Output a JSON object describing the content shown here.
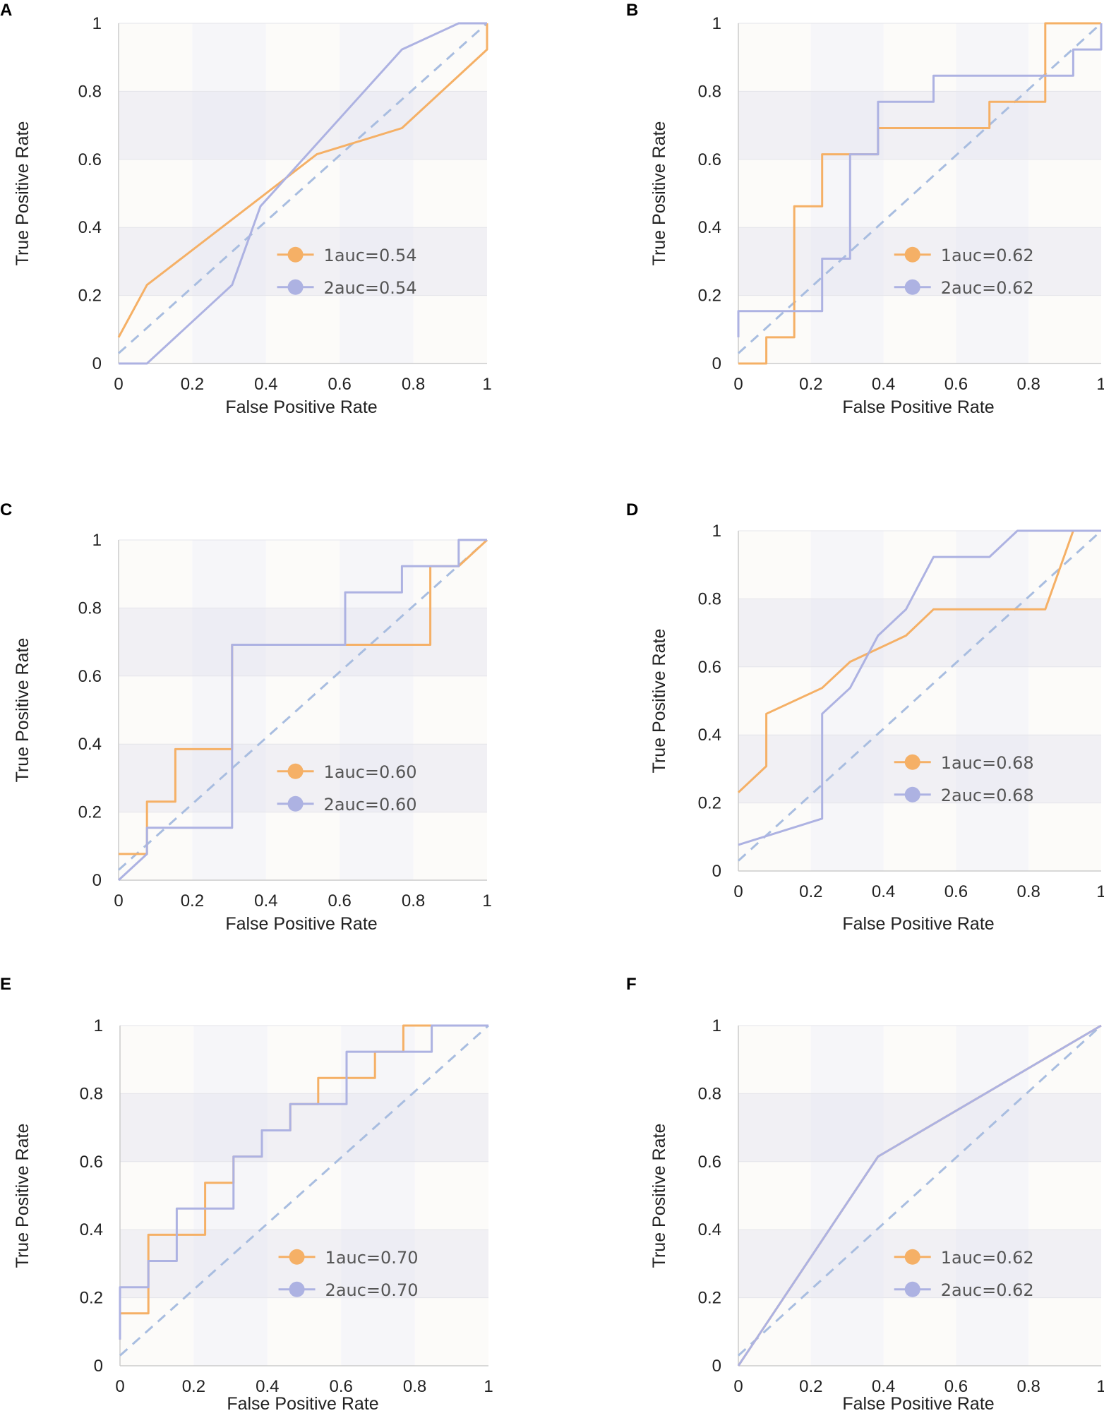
{
  "figure": {
    "background_band_light": "#fcfbf9",
    "background_band_dark": "#f6f6f9",
    "grid_color": "#e4e4ea",
    "axis_color": "#cccccc"
  },
  "chart_data": [
    {
      "panel": "A",
      "type": "line",
      "xlabel": "False Positive Rate",
      "ylabel": "True Positive Rate",
      "xlim": [
        0,
        1
      ],
      "ylim": [
        0,
        1
      ],
      "xticks": [
        "0",
        "0.2",
        "0.4",
        "0.6",
        "0.8",
        "1"
      ],
      "yticks": [
        "0",
        "0.2",
        "0.4",
        "0.6",
        "0.8",
        "1"
      ],
      "reference_line": {
        "x": [
          0,
          1
        ],
        "y": [
          0.03,
          1
        ],
        "color": "#a8bde0",
        "dashed": true
      },
      "series": [
        {
          "name": "1auc=0.54",
          "color": "#f5b066",
          "x": [
            0,
            0,
            0.077,
            0.538,
            0.769,
            1,
            1
          ],
          "y": [
            0.077,
            0.077,
            0.231,
            0.615,
            0.692,
            0.923,
            1
          ]
        },
        {
          "name": "2auc=0.54",
          "color": "#adb2e2",
          "x": [
            0,
            0.077,
            0.308,
            0.385,
            0.769,
            0.923,
            1
          ],
          "y": [
            0,
            0,
            0.231,
            0.462,
            0.923,
            1,
            1
          ]
        }
      ]
    },
    {
      "panel": "B",
      "type": "line",
      "xlabel": "False Positive Rate",
      "ylabel": "True Positive Rate",
      "xlim": [
        0,
        1
      ],
      "ylim": [
        0,
        1
      ],
      "xticks": [
        "0",
        "0.2",
        "0.4",
        "0.6",
        "0.8",
        "1"
      ],
      "yticks": [
        "0",
        "0.2",
        "0.4",
        "0.6",
        "0.8",
        "1"
      ],
      "reference_line": {
        "x": [
          0,
          1
        ],
        "y": [
          0.03,
          1
        ],
        "color": "#a8bde0",
        "dashed": true
      },
      "series": [
        {
          "name": "1auc=0.62",
          "color": "#f5b066",
          "x": [
            0,
            0.077,
            0.077,
            0.154,
            0.154,
            0.231,
            0.231,
            0.385,
            0.385,
            0.692,
            0.692,
            0.846,
            0.846,
            1
          ],
          "y": [
            0,
            0,
            0.077,
            0.077,
            0.462,
            0.462,
            0.615,
            0.615,
            0.692,
            0.692,
            0.769,
            0.769,
            1,
            1
          ]
        },
        {
          "name": "2auc=0.62",
          "color": "#adb2e2",
          "x": [
            0,
            0,
            0.231,
            0.231,
            0.308,
            0.308,
            0.385,
            0.385,
            0.538,
            0.538,
            0.923,
            0.923,
            1,
            1
          ],
          "y": [
            0.077,
            0.154,
            0.154,
            0.308,
            0.308,
            0.615,
            0.615,
            0.769,
            0.769,
            0.846,
            0.846,
            0.923,
            0.923,
            1
          ]
        }
      ]
    },
    {
      "panel": "C",
      "type": "line",
      "xlabel": "False Positive Rate",
      "ylabel": "True Positive Rate",
      "xlim": [
        0,
        1
      ],
      "ylim": [
        0,
        1
      ],
      "xticks": [
        "0",
        "0.2",
        "0.4",
        "0.6",
        "0.8",
        "1"
      ],
      "yticks": [
        "0",
        "0.2",
        "0.4",
        "0.6",
        "0.8",
        "1"
      ],
      "reference_line": {
        "x": [
          0,
          1
        ],
        "y": [
          0.03,
          1
        ],
        "color": "#a8bde0",
        "dashed": true
      },
      "series": [
        {
          "name": "1auc=0.60",
          "color": "#f5b066",
          "x": [
            0,
            0.077,
            0.077,
            0.154,
            0.154,
            0.308,
            0.308,
            0.846,
            0.846,
            0.923,
            1
          ],
          "y": [
            0.077,
            0.077,
            0.231,
            0.231,
            0.385,
            0.385,
            0.692,
            0.692,
            0.923,
            0.923,
            1
          ]
        },
        {
          "name": "2auc=0.60",
          "color": "#adb2e2",
          "x": [
            0,
            0.077,
            0.077,
            0.308,
            0.308,
            0.615,
            0.615,
            0.769,
            0.769,
            0.923,
            0.923,
            1
          ],
          "y": [
            0,
            0.077,
            0.154,
            0.154,
            0.692,
            0.692,
            0.846,
            0.846,
            0.923,
            0.923,
            1,
            1
          ]
        }
      ]
    },
    {
      "panel": "D",
      "type": "line",
      "xlabel": "False Positive Rate",
      "ylabel": "True Positive Rate",
      "xlim": [
        0,
        1
      ],
      "ylim": [
        0,
        1
      ],
      "xticks": [
        "0",
        "0.2",
        "0.4",
        "0.6",
        "0.8",
        "1"
      ],
      "yticks": [
        "0",
        "0.2",
        "0.4",
        "0.6",
        "0.8",
        "1"
      ],
      "reference_line": {
        "x": [
          0,
          1
        ],
        "y": [
          0.03,
          1
        ],
        "color": "#a8bde0",
        "dashed": true
      },
      "series": [
        {
          "name": "1auc=0.68",
          "color": "#f5b066",
          "x": [
            0,
            0.077,
            0.077,
            0.231,
            0.308,
            0.462,
            0.538,
            0.846,
            0.923,
            1
          ],
          "y": [
            0.231,
            0.308,
            0.462,
            0.538,
            0.615,
            0.692,
            0.769,
            0.769,
            1,
            1
          ]
        },
        {
          "name": "2auc=0.68",
          "color": "#adb2e2",
          "x": [
            0,
            0.231,
            0.231,
            0.308,
            0.385,
            0.462,
            0.538,
            0.692,
            0.769,
            1
          ],
          "y": [
            0.077,
            0.154,
            0.462,
            0.538,
            0.692,
            0.769,
            0.923,
            0.923,
            1,
            1
          ]
        }
      ]
    },
    {
      "panel": "E",
      "type": "line",
      "xlabel": "False Positive Rate",
      "ylabel": "True Positive Rate",
      "xlim": [
        0,
        1
      ],
      "ylim": [
        0,
        1
      ],
      "xticks": [
        "0",
        "0.2",
        "0.4",
        "0.6",
        "0.8",
        "1"
      ],
      "yticks": [
        "0",
        "0.2",
        "0.4",
        "0.6",
        "0.8",
        "1"
      ],
      "reference_line": {
        "x": [
          0,
          1
        ],
        "y": [
          0.03,
          1
        ],
        "color": "#a8bde0",
        "dashed": true
      },
      "series": [
        {
          "name": "1auc=0.70",
          "color": "#f5b066",
          "x": [
            0,
            0,
            0.077,
            0.077,
            0.231,
            0.231,
            0.308,
            0.308,
            0.385,
            0.385,
            0.462,
            0.462,
            0.538,
            0.538,
            0.692,
            0.692,
            0.769,
            0.769,
            1
          ],
          "y": [
            0.077,
            0.154,
            0.154,
            0.385,
            0.385,
            0.538,
            0.538,
            0.615,
            0.615,
            0.692,
            0.692,
            0.769,
            0.769,
            0.846,
            0.846,
            0.923,
            0.923,
            1,
            1
          ]
        },
        {
          "name": "2auc=0.70",
          "color": "#adb2e2",
          "x": [
            0,
            0,
            0.077,
            0.077,
            0.154,
            0.154,
            0.308,
            0.308,
            0.385,
            0.385,
            0.462,
            0.462,
            0.615,
            0.615,
            0.846,
            0.846,
            1
          ],
          "y": [
            0.077,
            0.231,
            0.231,
            0.308,
            0.308,
            0.462,
            0.462,
            0.615,
            0.615,
            0.692,
            0.692,
            0.769,
            0.769,
            0.923,
            0.923,
            1,
            1
          ]
        }
      ]
    },
    {
      "panel": "F",
      "type": "line",
      "xlabel": "False Positive Rate",
      "ylabel": "True Positive Rate",
      "xlim": [
        0,
        1
      ],
      "ylim": [
        0,
        1
      ],
      "xticks": [
        "0",
        "0.2",
        "0.4",
        "0.6",
        "0.8",
        "1"
      ],
      "yticks": [
        "0",
        "0.2",
        "0.4",
        "0.6",
        "0.8",
        "1"
      ],
      "reference_line": {
        "x": [
          0,
          1
        ],
        "y": [
          0.03,
          1
        ],
        "color": "#a8bde0",
        "dashed": true
      },
      "series": [
        {
          "name": "1auc=0.62",
          "color": "#f5b066",
          "x": [
            0,
            0.385,
            1
          ],
          "y": [
            0,
            0.615,
            1
          ]
        },
        {
          "name": "2auc=0.62",
          "color": "#adb2e2",
          "x": [
            0,
            0.385,
            1
          ],
          "y": [
            0,
            0.615,
            1
          ]
        }
      ]
    }
  ]
}
